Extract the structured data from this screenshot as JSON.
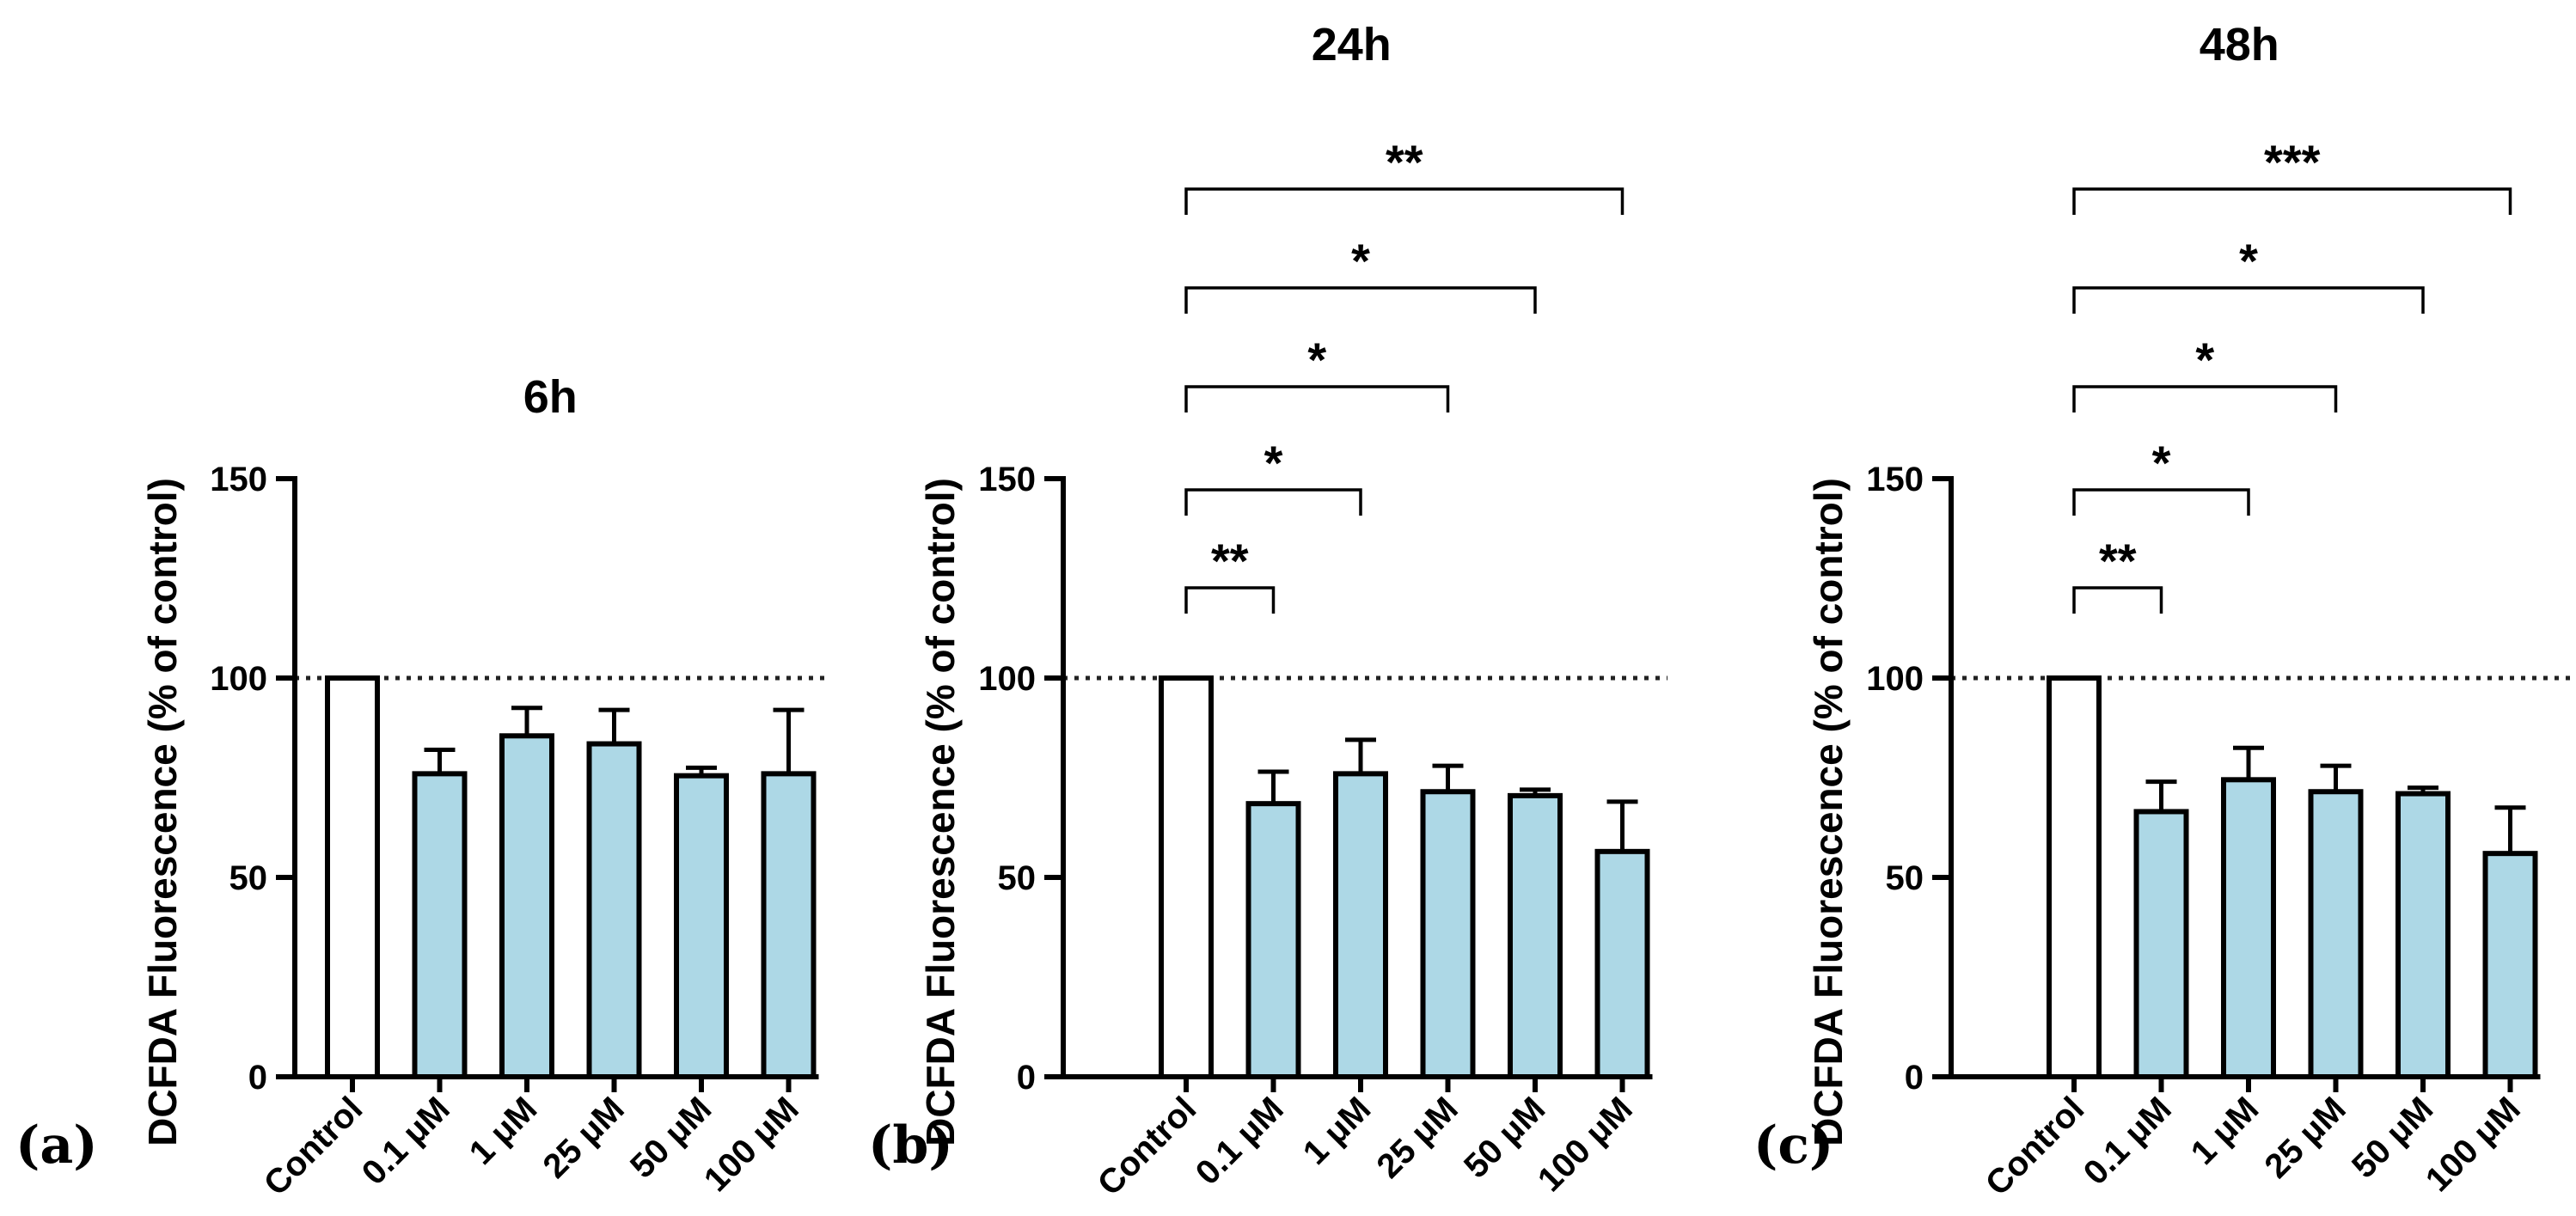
{
  "colors": {
    "control": "#ffffff",
    "treated": "#add8e6",
    "stroke": "#000000"
  },
  "chart_data": [
    {
      "type": "bar",
      "panel_label": "(a)",
      "title": "6h",
      "ylabel": "DCFDA Fluorescence (% of control)",
      "ylim": [
        0,
        150
      ],
      "yticks": [
        0,
        50,
        100,
        150
      ],
      "reference_line": 100,
      "categories": [
        "Control",
        "0.1 μM",
        "1 μM",
        "25 μM",
        "50 μM",
        "100 μM"
      ],
      "values": [
        100,
        76,
        85.5,
        83.5,
        75.5,
        76
      ],
      "errors": [
        0,
        6,
        7,
        8.5,
        2,
        16
      ],
      "significance": []
    },
    {
      "type": "bar",
      "panel_label": "(b)",
      "title": "24h",
      "ylabel": "DCFDA Fluorescence (% of control)",
      "ylim": [
        0,
        150
      ],
      "yticks": [
        0,
        50,
        100,
        150
      ],
      "reference_line": 100,
      "categories": [
        "Control",
        "0.1 μM",
        "1 μM",
        "25 μM",
        "50 μM",
        "100 μM"
      ],
      "values": [
        100,
        68.5,
        76,
        71.5,
        70.5,
        56.5
      ],
      "errors": [
        0,
        8,
        8.5,
        6.5,
        1.5,
        12.5
      ],
      "significance": [
        {
          "from": 0,
          "to": 1,
          "label": "**"
        },
        {
          "from": 0,
          "to": 2,
          "label": "*"
        },
        {
          "from": 0,
          "to": 3,
          "label": "*"
        },
        {
          "from": 0,
          "to": 4,
          "label": "*"
        },
        {
          "from": 0,
          "to": 5,
          "label": "**"
        }
      ]
    },
    {
      "type": "bar",
      "panel_label": "(c)",
      "title": "48h",
      "ylabel": "DCFDA Fluorescence (% of control)",
      "ylim": [
        0,
        150
      ],
      "yticks": [
        0,
        50,
        100,
        150
      ],
      "reference_line": 100,
      "categories": [
        "Control",
        "0.1 μM",
        "1 μM",
        "25 μM",
        "50 μM",
        "100 μM"
      ],
      "values": [
        100,
        66.5,
        74.5,
        71.5,
        71,
        56
      ],
      "errors": [
        0,
        7.5,
        8,
        6.5,
        1.5,
        11.5
      ],
      "significance": [
        {
          "from": 0,
          "to": 1,
          "label": "**"
        },
        {
          "from": 0,
          "to": 2,
          "label": "*"
        },
        {
          "from": 0,
          "to": 3,
          "label": "*"
        },
        {
          "from": 0,
          "to": 4,
          "label": "*"
        },
        {
          "from": 0,
          "to": 5,
          "label": "***"
        }
      ]
    }
  ]
}
